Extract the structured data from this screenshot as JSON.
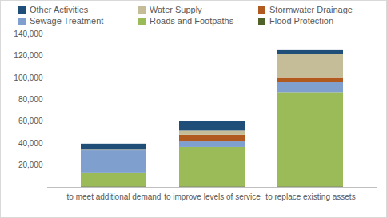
{
  "chart_data": {
    "type": "bar",
    "stacked": true,
    "grid": false,
    "legend": "top",
    "categories": [
      "to meet additional demand",
      "to improve levels of service",
      "to replace existing assets"
    ],
    "series": [
      {
        "name": "Flood Protection",
        "color": "#4f6228",
        "values": [
          500,
          500,
          500
        ]
      },
      {
        "name": "Roads and Footpaths",
        "color": "#9bbb59",
        "values": [
          12000,
          36000,
          86000
        ]
      },
      {
        "name": "Sewage Treatment",
        "color": "#7f9fcf",
        "values": [
          21000,
          5000,
          9000
        ]
      },
      {
        "name": "Stormwater Drainage",
        "color": "#b05a20",
        "values": [
          0,
          6000,
          4000
        ]
      },
      {
        "name": "Water Supply",
        "color": "#c4bd97",
        "values": [
          500,
          4000,
          22000
        ]
      },
      {
        "name": "Other Activities",
        "color": "#1f4e79",
        "values": [
          5500,
          9000,
          4000
        ]
      }
    ],
    "ylim": [
      0,
      140000
    ],
    "yticks": [
      {
        "value": 0,
        "label": "-"
      },
      {
        "value": 20000,
        "label": "20,000"
      },
      {
        "value": 40000,
        "label": "40,000"
      },
      {
        "value": 60000,
        "label": "60,000"
      },
      {
        "value": 80000,
        "label": "80,000"
      },
      {
        "value": 100000,
        "label": "100,000"
      },
      {
        "value": 120000,
        "label": "120,000"
      },
      {
        "value": 140000,
        "label": "140,000"
      }
    ]
  }
}
